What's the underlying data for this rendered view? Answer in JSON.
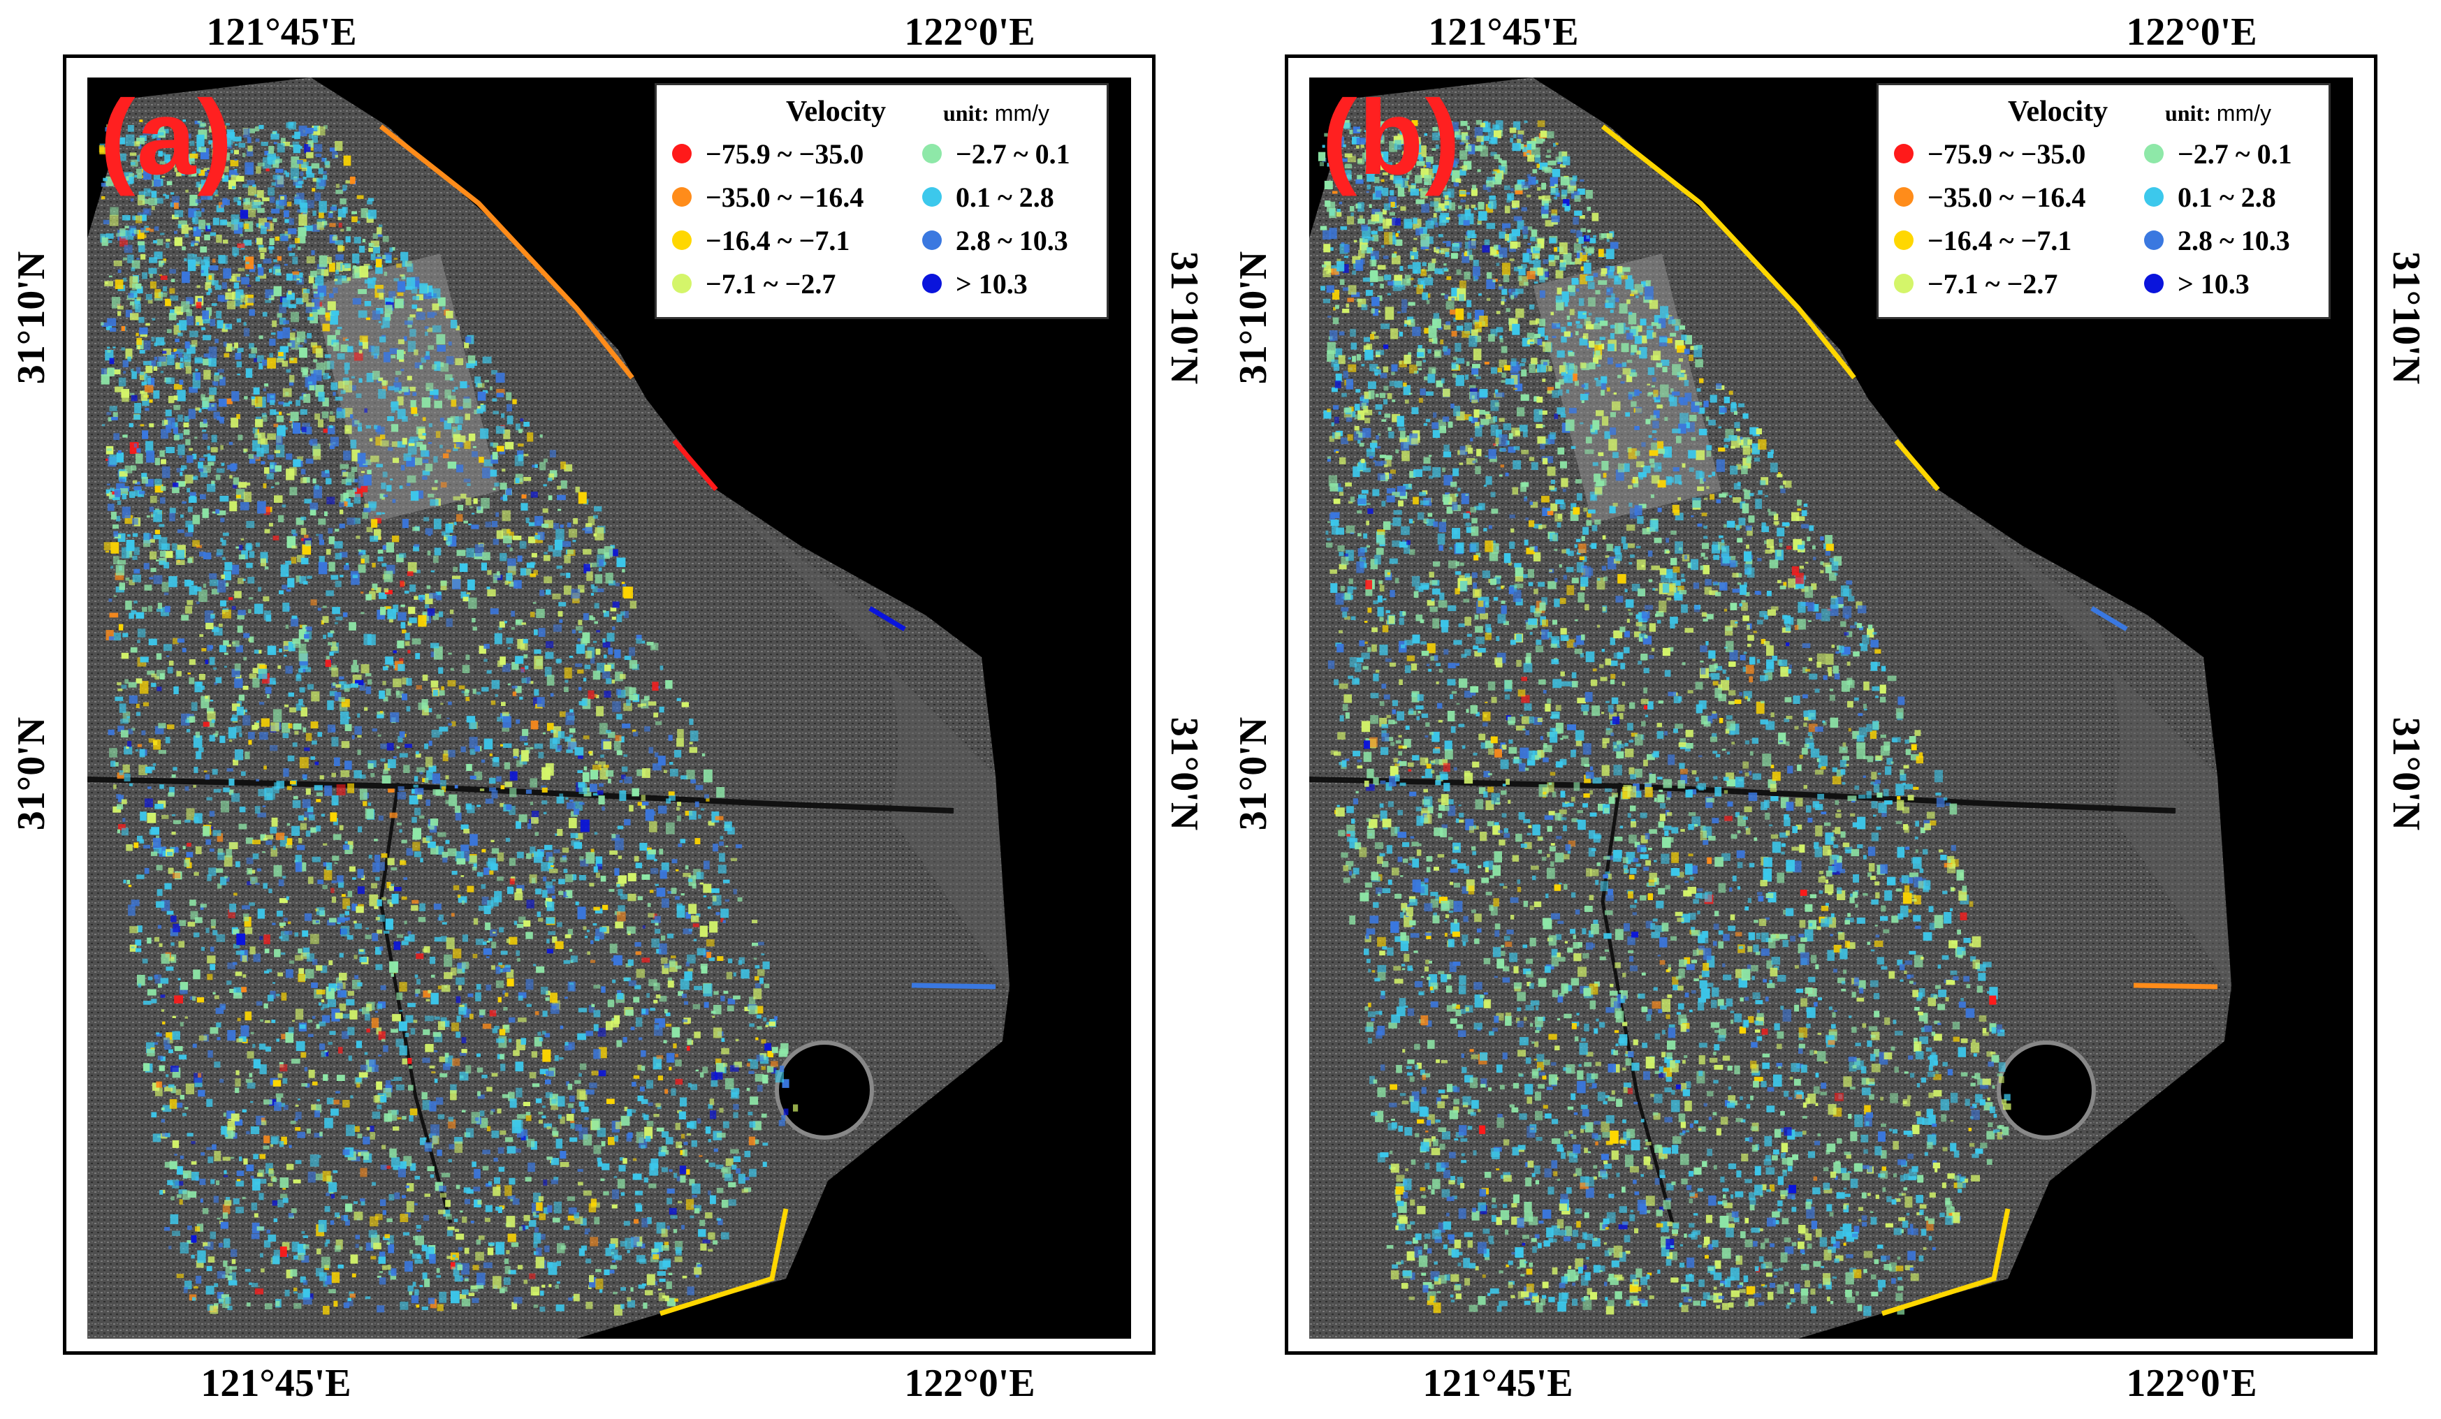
{
  "axes": {
    "top_ticks": [
      "121°45'E",
      "122°0'E"
    ],
    "bottom_ticks": [
      "121°45'E",
      "122°0'E"
    ],
    "lat_ticks": [
      "31°10'N",
      "31°0'N"
    ]
  },
  "legend": {
    "title": "Velocity",
    "unit_prefix": "unit:",
    "unit": "mm/y",
    "classes": [
      {
        "label": "−75.9 ~ −35.0",
        "color": "#ff1a1a"
      },
      {
        "label": "−35.0 ~ −16.4",
        "color": "#ff8c1a"
      },
      {
        "label": "−16.4 ~ −7.1",
        "color": "#ffd700"
      },
      {
        "label": "−7.1 ~ −2.7",
        "color": "#d4f56a"
      },
      {
        "label": "−2.7 ~ 0.1",
        "color": "#8ee8a8"
      },
      {
        "label": "0.1 ~ 2.8",
        "color": "#3cc8ec"
      },
      {
        "label": "2.8 ~ 10.3",
        "color": "#3a78e0"
      },
      {
        "label": "> 10.3",
        "color": "#0a14dc"
      }
    ]
  },
  "panels": [
    {
      "id": "a",
      "label": "(a)"
    },
    {
      "id": "b",
      "label": "(b)"
    }
  ]
}
